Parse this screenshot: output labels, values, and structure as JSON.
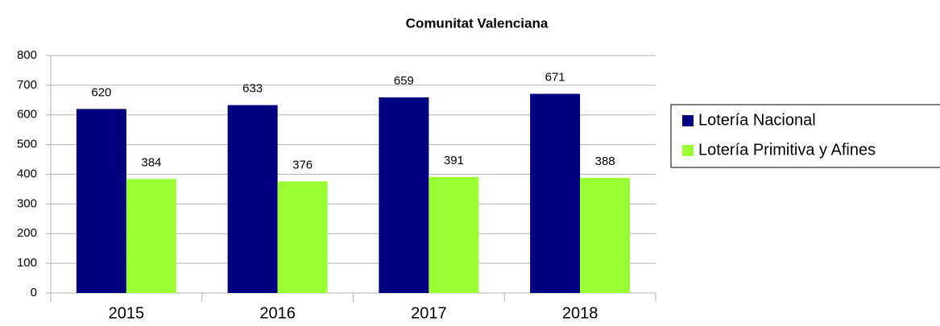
{
  "chart_data": {
    "type": "bar",
    "title": "Comunitat Valenciana",
    "categories": [
      "2015",
      "2016",
      "2017",
      "2018"
    ],
    "series": [
      {
        "name": "Lotería Nacional",
        "color": "#000080",
        "values": [
          620,
          633,
          659,
          671
        ]
      },
      {
        "name": "Lotería Primitiva y Afines",
        "color": "#99ff33",
        "values": [
          384,
          376,
          391,
          388
        ]
      }
    ],
    "ylim": [
      0,
      800
    ],
    "yticks": [
      0,
      100,
      200,
      300,
      400,
      500,
      600,
      700,
      800
    ],
    "grid": true,
    "legend": "right"
  }
}
